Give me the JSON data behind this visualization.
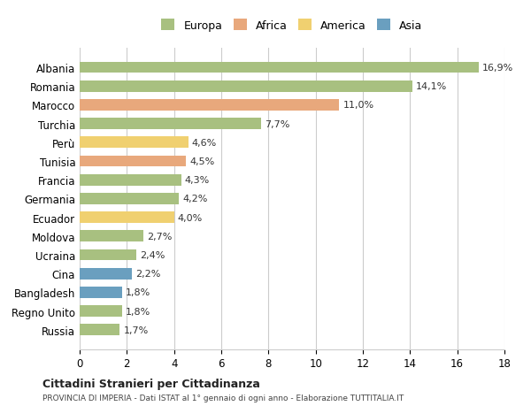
{
  "categories": [
    "Albania",
    "Romania",
    "Marocco",
    "Turchia",
    "Perù",
    "Tunisia",
    "Francia",
    "Germania",
    "Ecuador",
    "Moldova",
    "Ucraina",
    "Cina",
    "Bangladesh",
    "Regno Unito",
    "Russia"
  ],
  "values": [
    16.9,
    14.1,
    11.0,
    7.7,
    4.6,
    4.5,
    4.3,
    4.2,
    4.0,
    2.7,
    2.4,
    2.2,
    1.8,
    1.8,
    1.7
  ],
  "continents": [
    "Europa",
    "Europa",
    "Africa",
    "Europa",
    "America",
    "Africa",
    "Europa",
    "Europa",
    "America",
    "Europa",
    "Europa",
    "Asia",
    "Asia",
    "Europa",
    "Europa"
  ],
  "colors": {
    "Europa": "#a8c080",
    "Africa": "#e8a87c",
    "America": "#f0d070",
    "Asia": "#6a9fbf"
  },
  "legend_order": [
    "Europa",
    "Africa",
    "America",
    "Asia"
  ],
  "xlim": [
    0,
    18
  ],
  "xticks": [
    0,
    2,
    4,
    6,
    8,
    10,
    12,
    14,
    16,
    18
  ],
  "title": "Cittadini Stranieri per Cittadinanza",
  "subtitle": "PROVINCIA DI IMPERIA - Dati ISTAT al 1° gennaio di ogni anno - Elaborazione TUTTITALIA.IT",
  "background_color": "#ffffff",
  "grid_color": "#cccccc"
}
